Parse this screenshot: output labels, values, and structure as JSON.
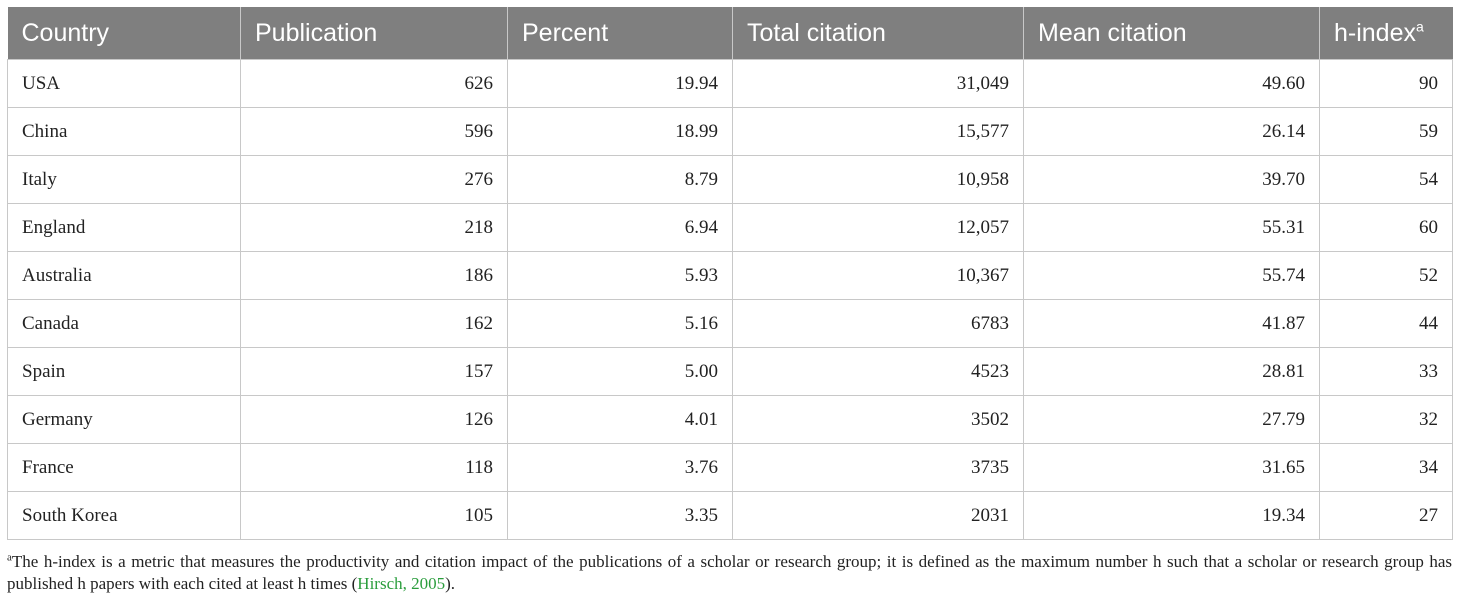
{
  "table": {
    "headers": [
      "Country",
      "Publication",
      "Percent",
      "Total citation",
      "Mean citation",
      "h-index"
    ],
    "header_marker": "a",
    "rows": [
      [
        "USA",
        "626",
        "19.94",
        "31,049",
        "49.60",
        "90"
      ],
      [
        "China",
        "596",
        "18.99",
        "15,577",
        "26.14",
        "59"
      ],
      [
        "Italy",
        "276",
        "8.79",
        "10,958",
        "39.70",
        "54"
      ],
      [
        "England",
        "218",
        "6.94",
        "12,057",
        "55.31",
        "60"
      ],
      [
        "Australia",
        "186",
        "5.93",
        "10,367",
        "55.74",
        "52"
      ],
      [
        "Canada",
        "162",
        "5.16",
        "6783",
        "41.87",
        "44"
      ],
      [
        "Spain",
        "157",
        "5.00",
        "4523",
        "28.81",
        "33"
      ],
      [
        "Germany",
        "126",
        "4.01",
        "3502",
        "27.79",
        "32"
      ],
      [
        "France",
        "118",
        "3.76",
        "3735",
        "31.65",
        "34"
      ],
      [
        "South Korea",
        "105",
        "3.35",
        "2031",
        "19.34",
        "27"
      ]
    ]
  },
  "footnote": {
    "marker": "a",
    "text": "The h-index is a metric that measures the productivity and citation impact of the publications of a scholar or research group; it is defined as the maximum number h such that a scholar or research group has published h papers with each cited at least h times (",
    "citation": "Hirsch, 2005",
    "closing": ")."
  },
  "colors": {
    "header_bg": "#7f7f7f",
    "header_text": "#ffffff",
    "grid": "#c8c8c8",
    "citation_link": "#2a9d3c"
  }
}
